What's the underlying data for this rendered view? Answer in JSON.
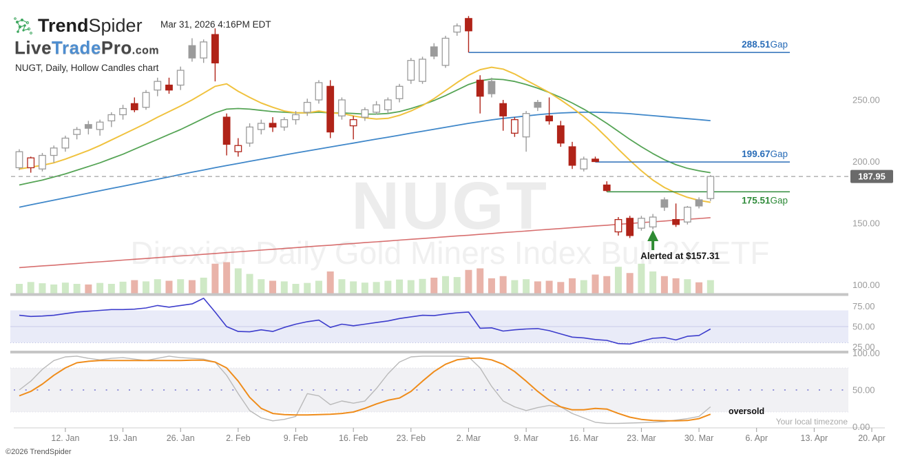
{
  "header": {
    "brand_bold": "Trend",
    "brand_light": "Spider",
    "partner_live": "Live",
    "partner_trade": "Trade",
    "partner_pro": "Pro",
    "partner_com": ".com",
    "chart_label": "NUGT, Daily, Hollow Candles chart",
    "timestamp": "Mar 31, 2026 4:16PM EDT"
  },
  "watermark": {
    "symbol": "NUGT",
    "name": "Direxion Daily Gold Miners Index Bull 2X ETF"
  },
  "annotations": {
    "last_price": "187.95",
    "gap_suffix": "Gap",
    "gaps": [
      {
        "price": 288.51,
        "label": "288.51",
        "from_index": 39,
        "color_key": "gap_blue",
        "label_side": "above"
      },
      {
        "price": 199.67,
        "label": "199.67",
        "from_index": 50,
        "color_key": "gap_blue",
        "label_side": "above"
      },
      {
        "price": 175.51,
        "label": "175.51",
        "from_index": 51,
        "color_key": "gap_green",
        "label_side": "below"
      }
    ],
    "alert": {
      "text": "Alerted at $157.31",
      "index": 55,
      "price": 157.31
    },
    "oversold": "oversold",
    "timezone": "Your local timezone",
    "copyright": "©2026 TrendSpider"
  },
  "axes": {
    "price_ticks": [
      250,
      200,
      150,
      100
    ],
    "rsi_ticks": [
      75,
      50,
      25
    ],
    "stoch_ticks": [
      100,
      50,
      0
    ],
    "date_ticks": [
      {
        "label": "12. Jan",
        "i": 4
      },
      {
        "label": "19. Jan",
        "i": 9
      },
      {
        "label": "26. Jan",
        "i": 14
      },
      {
        "label": "2. Feb",
        "i": 19
      },
      {
        "label": "9. Feb",
        "i": 24
      },
      {
        "label": "16. Feb",
        "i": 29
      },
      {
        "label": "23. Feb",
        "i": 34
      },
      {
        "label": "2. Mar",
        "i": 39
      },
      {
        "label": "9. Mar",
        "i": 44
      },
      {
        "label": "16. Mar",
        "i": 49
      },
      {
        "label": "23. Mar",
        "i": 54
      },
      {
        "label": "30. Mar",
        "i": 59
      },
      {
        "label": "6. Apr",
        "i": 64
      },
      {
        "label": "13. Apr",
        "i": 69
      },
      {
        "label": "20. Apr",
        "i": 74
      }
    ]
  },
  "colors": {
    "candle_red": "#b02318",
    "candle_gray": "#9b9b9b",
    "vol_green": "#cfe9c6",
    "vol_red": "#e9b3a9",
    "ma_yellow": "#f0c23e",
    "ma_green": "#55a455",
    "ma_blue": "#3f87c9",
    "ma_red": "#d05555",
    "rsi_line": "#3c3ccc",
    "rsi_band": "#e9ebf8",
    "stoch_main": "#ef8c1a",
    "stoch_signal": "#b9b9b9",
    "stoch_band": "#f1f1f4",
    "gap_blue": "#2a6db8",
    "gap_green": "#2f8b3a",
    "alert_green": "#2e8b32",
    "last_price_bg": "#6a6a6a",
    "separator": "#c6c6c6"
  },
  "chart_data": {
    "type": "candlestick",
    "symbol": "NUGT",
    "timeframe": "Daily",
    "style": "Hollow Candles",
    "ylim": [
      95,
      325
    ],
    "columns": [
      "date",
      "open",
      "high",
      "low",
      "close",
      "volume_rel"
    ],
    "candles": [
      [
        "Jan 6",
        195,
        210,
        193,
        208,
        0.3
      ],
      [
        "Jan 7",
        195,
        204,
        191,
        203,
        0.36
      ],
      [
        "Jan 8",
        194,
        207,
        192,
        205,
        0.32
      ],
      [
        "Jan 9",
        205,
        213,
        199,
        211,
        0.28
      ],
      [
        "Jan 12",
        211,
        221,
        208,
        219,
        0.34
      ],
      [
        "Jan 13",
        222,
        228,
        218,
        226,
        0.3
      ],
      [
        "Jan 14",
        230,
        233,
        222,
        227,
        0.28
      ],
      [
        "Jan 15",
        226,
        234,
        221,
        232,
        0.33
      ],
      [
        "Jan 16",
        233,
        240,
        228,
        238,
        0.3
      ],
      [
        "Jan 19",
        238,
        246,
        234,
        243,
        0.37
      ],
      [
        "Jan 20",
        247,
        252,
        240,
        242,
        0.42
      ],
      [
        "Jan 21",
        244,
        258,
        242,
        256,
        0.38
      ],
      [
        "Jan 22",
        258,
        268,
        253,
        265,
        0.45
      ],
      [
        "Jan 23",
        262,
        268,
        255,
        258,
        0.4
      ],
      [
        "Jan 26",
        262,
        277,
        258,
        274,
        0.45
      ],
      [
        "Jan 27",
        294,
        300,
        281,
        284,
        0.42
      ],
      [
        "Jan 28",
        284,
        299,
        280,
        297,
        0.5
      ],
      [
        "Jan 29",
        303,
        308,
        265,
        280,
        0.95
      ],
      [
        "Jan 30",
        236,
        239,
        205,
        214,
        1.0
      ],
      [
        "Feb 2",
        208,
        219,
        204,
        213,
        0.8
      ],
      [
        "Feb 3",
        215,
        231,
        212,
        228,
        0.62
      ],
      [
        "Feb 4",
        226,
        234,
        222,
        231,
        0.45
      ],
      [
        "Feb 5",
        231,
        236,
        224,
        228,
        0.4
      ],
      [
        "Feb 6",
        228,
        236,
        225,
        234,
        0.38
      ],
      [
        "Feb 9",
        234,
        241,
        230,
        238,
        0.3
      ],
      [
        "Feb 10",
        240,
        251,
        237,
        248,
        0.33
      ],
      [
        "Feb 11",
        250,
        266,
        247,
        264,
        0.4
      ],
      [
        "Feb 12",
        261,
        266,
        219,
        224,
        0.7
      ],
      [
        "Feb 13",
        237,
        252,
        234,
        250,
        0.45
      ],
      [
        "Feb 16",
        229,
        237,
        218,
        234,
        0.38
      ],
      [
        "Feb 17",
        236,
        244,
        233,
        242,
        0.34
      ],
      [
        "Feb 18",
        240,
        249,
        238,
        246,
        0.36
      ],
      [
        "Feb 19",
        242,
        252,
        239,
        250,
        0.4
      ],
      [
        "Feb 20",
        251,
        263,
        248,
        261,
        0.44
      ],
      [
        "Feb 23",
        266,
        284,
        263,
        282,
        0.42
      ],
      [
        "Feb 24",
        265,
        285,
        263,
        283,
        0.46
      ],
      [
        "Feb 25",
        293,
        296,
        283,
        285.5,
        0.5
      ],
      [
        "Feb 26",
        278,
        302,
        276,
        300,
        0.55
      ],
      [
        "Feb 27",
        305,
        312,
        302,
        310,
        0.52
      ],
      [
        "Mar 2",
        316,
        318,
        288.51,
        306,
        0.75
      ],
      [
        "Mar 3",
        266,
        270,
        239,
        253,
        0.8
      ],
      [
        "Mar 4",
        265,
        268,
        252,
        255,
        0.48
      ],
      [
        "Mar 5",
        247,
        250,
        225,
        237,
        0.55
      ],
      [
        "Mar 6",
        223,
        236,
        220,
        234,
        0.42
      ],
      [
        "Mar 9",
        220,
        241,
        208,
        239,
        0.45
      ],
      [
        "Mar 10",
        248,
        250,
        241,
        244,
        0.38
      ],
      [
        "Mar 11",
        237,
        252,
        230,
        233,
        0.4
      ],
      [
        "Mar 12",
        229,
        233,
        212,
        215,
        0.36
      ],
      [
        "Mar 13",
        212,
        216,
        194,
        197,
        0.48
      ],
      [
        "Mar 16",
        194,
        204,
        192,
        202,
        0.42
      ],
      [
        "Mar 17",
        202,
        204,
        199.67,
        200,
        0.6
      ],
      [
        "Mar 18",
        181,
        184,
        175.51,
        176.5,
        0.55
      ],
      [
        "Mar 19",
        143,
        155,
        140,
        153,
        0.85
      ],
      [
        "Mar 20",
        154,
        156,
        138,
        140,
        0.65
      ],
      [
        "Mar 23",
        146,
        156,
        144,
        154,
        0.95
      ],
      [
        "Mar 24",
        147,
        157.5,
        145,
        155,
        0.7
      ],
      [
        "Mar 25",
        169,
        171,
        160,
        163,
        0.55
      ],
      [
        "Mar 26",
        153,
        166,
        147,
        149,
        0.48
      ],
      [
        "Mar 27",
        151,
        164,
        149,
        163,
        0.45
      ],
      [
        "Mar 30",
        169,
        171,
        162,
        164,
        0.35
      ],
      [
        "Mar 31",
        170,
        189,
        168,
        187.95,
        0.42
      ]
    ],
    "overlays": {
      "ma_fast_yellow": [
        194,
        195.5,
        197,
        199,
        202,
        205.5,
        209,
        213,
        217.5,
        222,
        226.5,
        231,
        236,
        240.5,
        245,
        250,
        255.5,
        261,
        263,
        257,
        252,
        247.5,
        244,
        241,
        239.5,
        239.5,
        241,
        239.5,
        239,
        237,
        235.5,
        234.5,
        235,
        237.5,
        241,
        245.5,
        251,
        257.5,
        264,
        270,
        274.5,
        276.5,
        275,
        271,
        266,
        261,
        256,
        250,
        243.5,
        236.5,
        228.5,
        219.5,
        210,
        201,
        192.5,
        185,
        179,
        174.5,
        171,
        168.5,
        167
      ],
      "ma_mid_green": [
        181,
        183,
        185,
        187.5,
        190,
        193,
        196,
        199,
        202.5,
        206,
        210,
        214,
        218,
        222,
        226,
        230.5,
        235,
        239.5,
        242.5,
        243,
        242.5,
        241.5,
        240.5,
        240,
        239.5,
        239.5,
        240,
        239.5,
        239.5,
        239,
        238.5,
        238.5,
        239,
        240.5,
        243,
        246,
        249.5,
        253.5,
        258,
        262.5,
        265.5,
        267,
        266.5,
        265,
        262.5,
        259.5,
        256,
        252,
        247.5,
        242.5,
        237,
        231,
        224.5,
        218,
        212,
        206.5,
        201.5,
        197.5,
        194.5,
        192.5,
        191
      ],
      "ma_slow_blue": [
        163,
        164.9,
        166.8,
        168.7,
        170.6,
        172.5,
        174.4,
        176.3,
        178.2,
        180,
        181.9,
        183.8,
        185.7,
        187.6,
        189.5,
        191.4,
        193.2,
        195,
        196.8,
        198.5,
        200.2,
        201.9,
        203.6,
        205.3,
        207,
        208.6,
        210.2,
        211.8,
        213.4,
        215,
        216.6,
        218.2,
        219.8,
        221.4,
        223,
        224.6,
        226.2,
        227.8,
        229.4,
        231,
        232.4,
        233.8,
        235,
        236,
        237,
        238,
        238.8,
        239.4,
        239.8,
        240,
        240,
        239.8,
        239.4,
        238.8,
        238,
        237.2,
        236.4,
        235.6,
        234.8,
        234,
        233.2
      ],
      "ma_200_red": [
        114,
        114.7,
        115.4,
        116,
        116.7,
        117.4,
        118.1,
        118.7,
        119.4,
        120.1,
        120.8,
        121.4,
        122.1,
        122.8,
        123.5,
        124.1,
        124.8,
        125.5,
        126.2,
        126.8,
        127.5,
        128.2,
        128.9,
        129.5,
        130.2,
        130.9,
        131.6,
        132.2,
        132.9,
        133.6,
        134.3,
        134.9,
        135.6,
        136.3,
        137,
        137.6,
        138.3,
        139,
        139.7,
        140.3,
        141,
        141.7,
        142.4,
        143,
        143.7,
        144.4,
        145.1,
        145.7,
        146.4,
        147.1,
        147.8,
        148.4,
        149.1,
        149.8,
        150.5,
        151.1,
        151.8,
        152.5,
        153.2,
        153.8,
        154.5
      ]
    },
    "indicators": {
      "rsi": [
        64,
        62.5,
        63,
        64,
        66,
        68,
        69,
        70,
        71,
        71,
        71.5,
        73,
        76,
        74,
        76,
        78,
        85,
        68,
        50,
        44,
        43.5,
        46,
        44,
        49,
        53,
        56,
        58,
        49,
        53,
        51,
        53,
        55,
        57,
        60,
        62,
        64,
        63.5,
        65.5,
        67,
        68,
        48,
        48.5,
        44.5,
        46,
        47,
        47.5,
        45,
        41,
        37,
        36,
        34,
        33,
        29,
        28.5,
        32,
        35.5,
        36.5,
        33.5,
        38,
        39,
        47
      ],
      "stoch_main": [
        42,
        48,
        58,
        70,
        80,
        87,
        89,
        90,
        90,
        90,
        90,
        90,
        90,
        90,
        90,
        90.5,
        90.5,
        88,
        80,
        62,
        40,
        25,
        18,
        16.5,
        16,
        16,
        16.5,
        17,
        18,
        20,
        25,
        31,
        36,
        39,
        48,
        62,
        75,
        85,
        91,
        93,
        93.5,
        91,
        85,
        75,
        62,
        48,
        36,
        27,
        23,
        23,
        25,
        24,
        18,
        13,
        10,
        8.5,
        8,
        8,
        8.5,
        11,
        17
      ],
      "stoch_signal": [
        50,
        62,
        78,
        90,
        95,
        96,
        93,
        91,
        93,
        94,
        92,
        90,
        93,
        96,
        94,
        93,
        92,
        88,
        70,
        45,
        22,
        12,
        8,
        10,
        14,
        45,
        42,
        30,
        35,
        32,
        35,
        52,
        72,
        88,
        95,
        96,
        96,
        96,
        96,
        95,
        80,
        55,
        35,
        27,
        22,
        26,
        29,
        27,
        18,
        12,
        6,
        4.5,
        4.5,
        5,
        5.5,
        6,
        7,
        9,
        11,
        14,
        27
      ],
      "rsi_band": [
        30,
        70
      ],
      "stoch_band": [
        20,
        80
      ]
    }
  }
}
